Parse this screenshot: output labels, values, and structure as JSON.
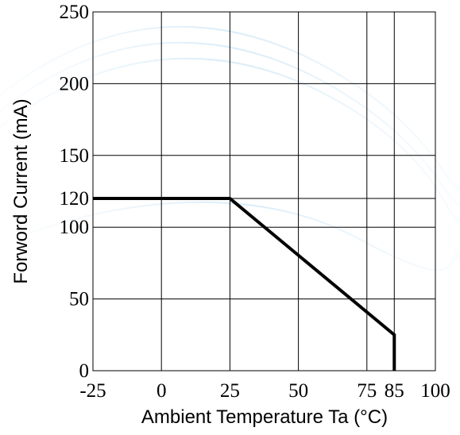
{
  "chart_data": {
    "type": "line",
    "x_label": "Ambient Temperature Ta (°C)",
    "y_label": "Forword Current (mA)",
    "x": [
      -25,
      25,
      85,
      85
    ],
    "series": [
      {
        "color": "#000000",
        "values": [
          120,
          120,
          25,
          0
        ]
      }
    ],
    "xlim": [
      -25,
      100
    ],
    "xticks": [
      -25,
      0,
      25,
      50,
      75,
      85,
      100
    ],
    "ylim": [
      0,
      250
    ],
    "yticks": [
      0,
      50,
      100,
      120,
      150,
      200,
      250
    ],
    "grid": true
  }
}
